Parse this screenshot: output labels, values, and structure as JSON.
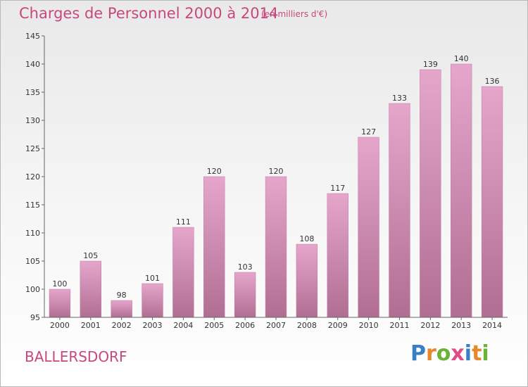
{
  "header": {
    "title": "Charges de Personnel 2000 à 2014",
    "subtitle": "(en milliers d'€)"
  },
  "footer": {
    "commune": "BALLERSDORF",
    "logo": "Proxiti",
    "logo_letters": [
      {
        "char": "P",
        "color": "#3a7fc2"
      },
      {
        "char": "r",
        "color": "#e8862b"
      },
      {
        "char": "o",
        "color": "#69b339"
      },
      {
        "char": "x",
        "color": "#e04a85"
      },
      {
        "char": "i",
        "color": "#3a7fc2"
      },
      {
        "char": "t",
        "color": "#e8862b"
      },
      {
        "char": "i",
        "color": "#69b339"
      }
    ]
  },
  "colors": {
    "accent": "#c8487c",
    "bar_light": "#e6a6cc",
    "bar_dark": "#b06e92"
  },
  "chart_data": {
    "type": "bar",
    "title": "Charges de Personnel 2000 à 2014",
    "subtitle": "(en milliers d'€)",
    "categories": [
      "2000",
      "2001",
      "2002",
      "2003",
      "2004",
      "2005",
      "2006",
      "2007",
      "2008",
      "2009",
      "2010",
      "2011",
      "2012",
      "2013",
      "2014"
    ],
    "values": [
      100,
      105,
      98,
      101,
      111,
      120,
      103,
      120,
      108,
      117,
      127,
      133,
      139,
      140,
      136
    ],
    "ylim": [
      95,
      145
    ],
    "yticks": [
      95,
      100,
      105,
      110,
      115,
      120,
      125,
      130,
      135,
      140,
      145
    ],
    "grid": false,
    "legend": "none"
  }
}
